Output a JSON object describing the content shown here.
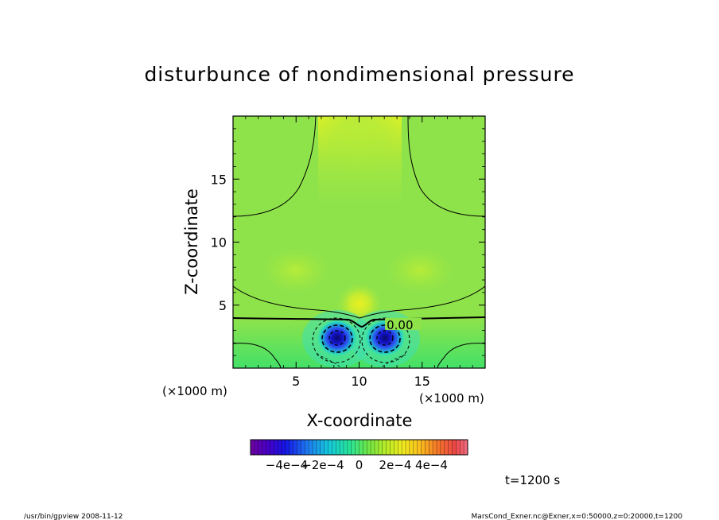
{
  "chart_data": {
    "type": "heatmap",
    "title": "disturbunce of nondimensional pressure",
    "xlabel": "X-coordinate",
    "ylabel": "Z-coordinate",
    "x_unit": "(×1000 m)",
    "y_unit": "(×1000 m)",
    "xlim": [
      0,
      20
    ],
    "ylim": [
      0,
      20
    ],
    "x_ticks": [
      5,
      10,
      15
    ],
    "y_ticks": [
      5,
      10,
      15
    ],
    "x_tick_labels": [
      "5",
      "10",
      "15"
    ],
    "y_tick_labels": [
      "5",
      "10",
      "15"
    ],
    "contour_label": "0.00",
    "contour_label_position": [
      13,
      3.6
    ],
    "colorbar": {
      "range": [
        -0.0006,
        0.0006
      ],
      "tick_labels": [
        "−4e−4",
        "−2e−4",
        "0",
        "2e−4",
        "4e−4"
      ],
      "tick_values": [
        -0.0004,
        -0.0002,
        0,
        0.0002,
        0.0004
      ]
    },
    "features": [
      {
        "kind": "low",
        "x": 8.2,
        "z": 2.3,
        "min_value": -0.00055
      },
      {
        "kind": "low",
        "x": 12.0,
        "z": 2.3,
        "min_value": -0.00055
      },
      {
        "kind": "high",
        "x": 10.0,
        "z": 5.0,
        "value": 0.00012
      },
      {
        "kind": "high",
        "x": 10.0,
        "z": 19.0,
        "value": 0.0001
      }
    ],
    "grid": false,
    "legend": "colorbar-below"
  },
  "time_label": "t=1200 s",
  "footer": {
    "left": "/usr/bin/gpview   2008-11-12",
    "right": "MarsCond_Exner.nc@Exner,x=0:50000,z=0:20000,t=1200"
  }
}
